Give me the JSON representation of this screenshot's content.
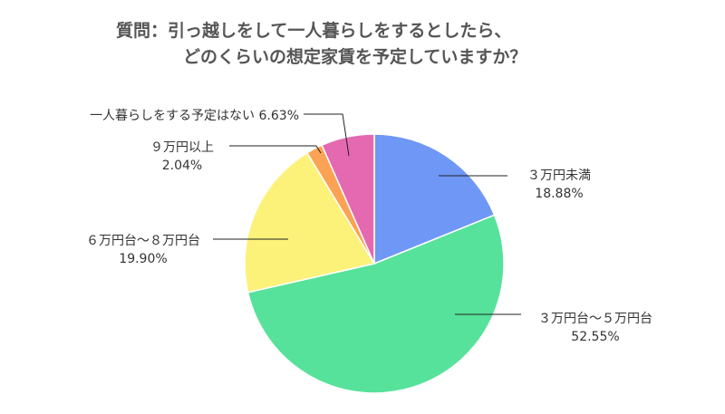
{
  "title_line1": "質問：引っ越しをして一人暮らしをするとしたら、",
  "title_line2": "どのくらいの想定家賃を予定していますか？",
  "chart_data": {
    "type": "pie",
    "title": "質問：引っ越しをして一人暮らしをするとしたら、どのくらいの想定家賃を予定していますか？",
    "categories": [
      "３万円未満",
      "３万円台〜５万円台",
      "６万円台〜８万円台",
      "９万円以上",
      "一人暮らしをする予定はない"
    ],
    "values": [
      18.88,
      52.55,
      19.9,
      2.04,
      6.63
    ],
    "value_labels": [
      "18.88%",
      "52.55%",
      "19.90%",
      "2.04%",
      "6.63%"
    ],
    "colors": [
      "#6f97f6",
      "#56e29a",
      "#fcf27a",
      "#fba254",
      "#e469b1"
    ],
    "start": "12 o'clock",
    "direction": "clockwise",
    "legend": "none"
  }
}
